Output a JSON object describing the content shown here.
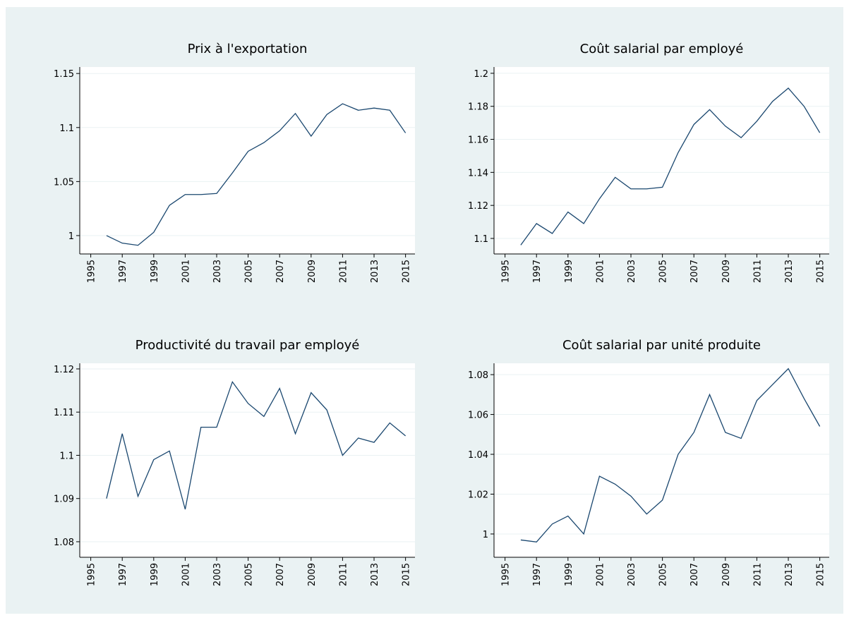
{
  "chart_data": [
    {
      "type": "line",
      "title": "Prix à l'exportation",
      "color": "#1a476f",
      "grid": true,
      "x": [
        1996,
        1997,
        1998,
        1999,
        2000,
        2001,
        2002,
        2003,
        2004,
        2005,
        2006,
        2007,
        2008,
        2009,
        2010,
        2011,
        2012,
        2013,
        2014,
        2015
      ],
      "values": [
        1.0,
        0.993,
        0.991,
        1.003,
        1.028,
        1.038,
        1.038,
        1.039,
        1.058,
        1.078,
        1.086,
        1.097,
        1.113,
        1.092,
        1.112,
        1.122,
        1.116,
        1.118,
        1.116,
        1.095
      ],
      "xlim": [
        1994.3,
        2015.6
      ],
      "xticks": [
        1995,
        1997,
        1999,
        2001,
        2003,
        2005,
        2007,
        2009,
        2011,
        2013,
        2015
      ],
      "ylim": [
        0.983,
        1.156
      ],
      "yticks": [
        1,
        1.05,
        1.1,
        1.15
      ]
    },
    {
      "type": "line",
      "title": "Coût salarial par employé",
      "color": "#1a476f",
      "grid": true,
      "x": [
        1996,
        1997,
        1998,
        1999,
        2000,
        2001,
        2002,
        2003,
        2004,
        2005,
        2006,
        2007,
        2008,
        2009,
        2010,
        2011,
        2012,
        2013,
        2014,
        2015
      ],
      "values": [
        1.096,
        1.109,
        1.103,
        1.116,
        1.109,
        1.124,
        1.137,
        1.13,
        1.13,
        1.131,
        1.152,
        1.169,
        1.178,
        1.168,
        1.161,
        1.171,
        1.183,
        1.191,
        1.18,
        1.164
      ],
      "xlim": [
        1994.3,
        2015.6
      ],
      "xticks": [
        1995,
        1997,
        1999,
        2001,
        2003,
        2005,
        2007,
        2009,
        2011,
        2013,
        2015
      ],
      "ylim": [
        1.0906,
        1.2038
      ],
      "yticks": [
        1.1,
        1.12,
        1.14,
        1.16,
        1.18,
        1.2
      ]
    },
    {
      "type": "line",
      "title": "Productivité du travail par employé",
      "color": "#1a476f",
      "grid": true,
      "x": [
        1996,
        1997,
        1998,
        1999,
        2000,
        2001,
        2002,
        2003,
        2004,
        2005,
        2006,
        2007,
        2008,
        2009,
        2010,
        2011,
        2012,
        2013,
        2014,
        2015
      ],
      "values": [
        1.09,
        1.105,
        1.0905,
        1.099,
        1.101,
        1.0875,
        1.1065,
        1.1065,
        1.117,
        1.112,
        1.109,
        1.1155,
        1.105,
        1.1145,
        1.1105,
        1.1,
        1.104,
        1.103,
        1.1075,
        1.1045
      ],
      "xlim": [
        1994.3,
        2015.6
      ],
      "xticks": [
        1995,
        1997,
        1999,
        2001,
        2003,
        2005,
        2007,
        2009,
        2011,
        2013,
        2015
      ],
      "ylim": [
        1.0764,
        1.1213
      ],
      "yticks": [
        1.08,
        1.09,
        1.1,
        1.11,
        1.12
      ]
    },
    {
      "type": "line",
      "title": "Coût salarial par unité produite",
      "color": "#1a476f",
      "grid": true,
      "x": [
        1996,
        1997,
        1998,
        1999,
        2000,
        2001,
        2002,
        2003,
        2004,
        2005,
        2006,
        2007,
        2008,
        2009,
        2010,
        2011,
        2012,
        2013,
        2014,
        2015
      ],
      "values": [
        0.997,
        0.996,
        1.005,
        1.009,
        1.0,
        1.029,
        1.025,
        1.019,
        1.01,
        1.017,
        1.04,
        1.051,
        1.07,
        1.051,
        1.048,
        1.067,
        1.075,
        1.083,
        1.068,
        1.054
      ],
      "xlim": [
        1994.3,
        2015.6
      ],
      "xticks": [
        1995,
        1997,
        1999,
        2001,
        2003,
        2005,
        2007,
        2009,
        2011,
        2013,
        2015
      ],
      "ylim": [
        0.9883,
        1.0857
      ],
      "yticks": [
        1,
        1.02,
        1.04,
        1.06,
        1.08
      ]
    }
  ]
}
